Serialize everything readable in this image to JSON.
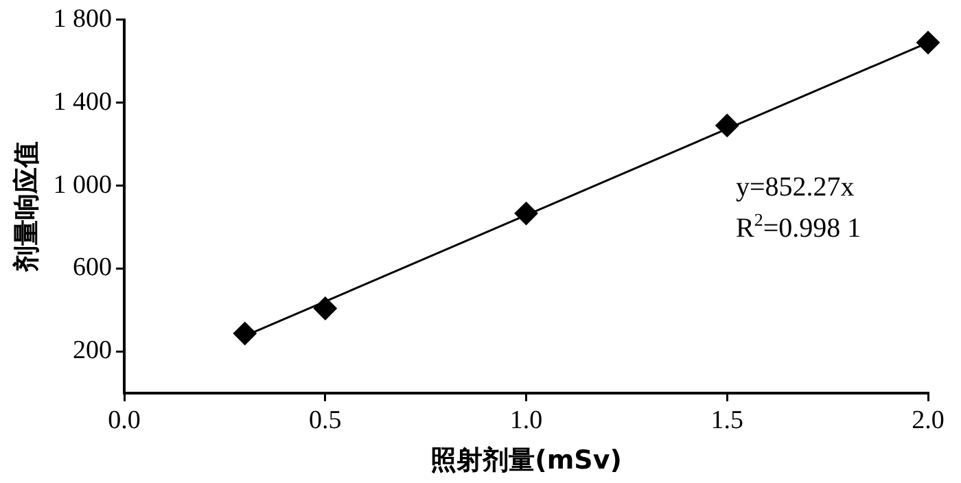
{
  "chart_data": {
    "type": "scatter",
    "xlabel": "照射剂量(mSv)",
    "ylabel": "剂量响应值",
    "xlim": [
      0,
      2
    ],
    "xticks": [
      {
        "value": 0,
        "label": "0.0"
      },
      {
        "value": 0.5,
        "label": "0.5"
      },
      {
        "value": 1,
        "label": "1.0"
      },
      {
        "value": 1.5,
        "label": "1.5"
      },
      {
        "value": 2,
        "label": "2.0"
      }
    ],
    "ylim": [
      0,
      1800
    ],
    "yticks": [
      200,
      600,
      {
        "value": 1000,
        "label": "1 000"
      },
      {
        "value": 1400,
        "label": "1 400"
      },
      {
        "value": 1800,
        "label": "1 800"
      }
    ],
    "grid": false,
    "legend": false,
    "marker": "diamond",
    "series": [
      {
        "color": "#000000",
        "x": [
          0.3,
          0.5,
          1.0,
          1.5,
          2.0
        ],
        "values": [
          287,
          408,
          866,
          1290,
          1690
        ]
      },
      {
        "type": "line",
        "color": "#000000",
        "marker": "none",
        "x": [
          0.3,
          2.0
        ],
        "values": [
          275,
          1690
        ]
      }
    ],
    "annotations": [
      "y=852.27x",
      "R$^{2}$=0.998 1"
    ]
  }
}
